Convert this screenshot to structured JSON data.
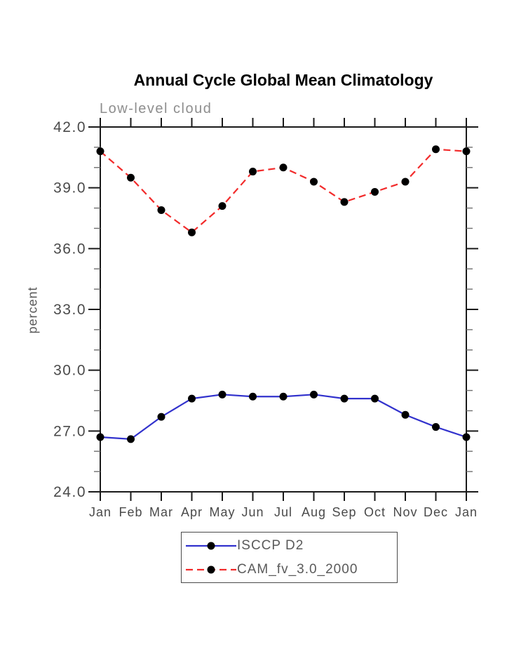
{
  "title": "Annual Cycle Global Mean Climatology",
  "subtitle": "Low-level cloud",
  "ylabel": "percent",
  "colors": {
    "axis": "#1a1a1a",
    "minor_tick": "#707070",
    "tick_label": "#4a4a4a",
    "marker": "#000000",
    "series_blue": "#3232cd",
    "series_red": "#f22b2b"
  },
  "legend": {
    "items": [
      {
        "label": "ISCCP D2",
        "color": "#3232cd",
        "style": "solid"
      },
      {
        "label": "CAM_fv_3.0_2000",
        "color": "#f22b2b",
        "style": "dashed"
      }
    ]
  },
  "chart_data": {
    "type": "line",
    "title": "Annual Cycle Global Mean Climatology",
    "subtitle": "Low-level cloud",
    "xlabel": "",
    "ylabel": "percent",
    "categories": [
      "Jan",
      "Feb",
      "Mar",
      "Apr",
      "May",
      "Jun",
      "Jul",
      "Aug",
      "Sep",
      "Oct",
      "Nov",
      "Dec",
      "Jan"
    ],
    "series": [
      {
        "name": "ISCCP D2",
        "color": "#3232cd",
        "style": "solid",
        "marker": "filled-circle",
        "values": [
          26.7,
          26.6,
          27.7,
          28.6,
          28.8,
          28.7,
          28.7,
          28.8,
          28.6,
          28.6,
          27.8,
          27.2,
          26.7
        ]
      },
      {
        "name": "CAM_fv_3.0_2000",
        "color": "#f22b2b",
        "style": "dashed",
        "marker": "filled-circle",
        "values": [
          40.8,
          39.5,
          37.9,
          36.8,
          38.1,
          39.8,
          40.0,
          39.3,
          38.3,
          38.8,
          39.3,
          40.9,
          40.8
        ]
      }
    ],
    "ylim": [
      24.0,
      42.0
    ],
    "y_major_ticks": [
      24.0,
      27.0,
      30.0,
      33.0,
      36.0,
      39.0,
      42.0
    ],
    "y_minor_step": 1.0,
    "grid": false,
    "legend_position": "bottom-center"
  }
}
